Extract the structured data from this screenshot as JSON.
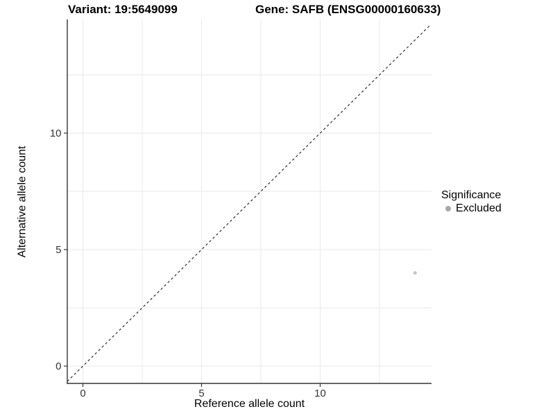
{
  "chart_data": {
    "type": "scatter",
    "titles": {
      "left": "Variant: 19:5649099",
      "right": "Gene: SAFB (ENSG00000160633)"
    },
    "xlabel": "Reference allele count",
    "ylabel": "Alternative allele count",
    "xlim": [
      -0.66,
      14.66
    ],
    "ylim": [
      -0.74,
      14.88
    ],
    "x_ticks": [
      0,
      5,
      10
    ],
    "y_ticks": [
      0,
      5,
      10
    ],
    "x_minor_gridlines": [
      2.5,
      7.5,
      12.5
    ],
    "y_minor_gridlines": [
      2.5,
      7.5,
      12.5
    ],
    "grid": "major and minor, light gray, left+bottom axis lines only",
    "series": [
      {
        "name": "Excluded",
        "color": "#c6c6c6",
        "points": [
          {
            "x": 14,
            "y": 4
          }
        ]
      }
    ],
    "reference_line": {
      "type": "identity y=x",
      "style": "dashed",
      "color": "#1a1a1a"
    },
    "legend": {
      "title": "Significance",
      "position": "right",
      "entries": [
        {
          "label": "Excluded",
          "color": "#a8a8a8"
        }
      ]
    }
  },
  "style_colors": {
    "grid": "#e9e9e9",
    "axis": "#333333",
    "tick_text": "#333333",
    "title_text": "#000000"
  }
}
